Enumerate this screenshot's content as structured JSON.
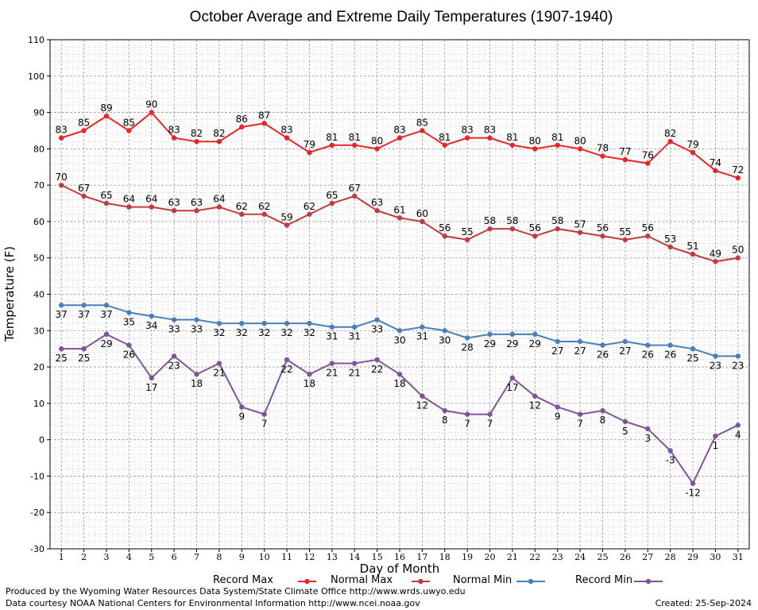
{
  "chart_data": {
    "type": "line",
    "title": "October Average and Extreme Daily Temperatures (1907-1940)",
    "xlabel": "Day of Month",
    "ylabel": "Temperature (F)",
    "xlim": [
      1,
      31
    ],
    "ylim": [
      -30,
      110
    ],
    "y_ticks": [
      -30,
      -20,
      -10,
      0,
      10,
      20,
      30,
      40,
      50,
      60,
      70,
      80,
      90,
      100,
      110
    ],
    "x": [
      1,
      2,
      3,
      4,
      5,
      6,
      7,
      8,
      9,
      10,
      11,
      12,
      13,
      14,
      15,
      16,
      17,
      18,
      19,
      20,
      21,
      22,
      23,
      24,
      25,
      26,
      27,
      28,
      29,
      30,
      31
    ],
    "grid": true,
    "legend_position": "bottom",
    "series": [
      {
        "name": "Record Max",
        "color": "#e8262a",
        "values": [
          83,
          85,
          89,
          85,
          90,
          83,
          82,
          82,
          86,
          87,
          83,
          79,
          81,
          81,
          80,
          83,
          85,
          81,
          83,
          83,
          81,
          80,
          81,
          80,
          78,
          77,
          76,
          82,
          79,
          74,
          72
        ]
      },
      {
        "name": "Normal Max",
        "color": "#c03c40",
        "values": [
          70,
          67,
          65,
          64,
          64,
          63,
          63,
          64,
          62,
          62,
          59,
          62,
          65,
          67,
          63,
          61,
          60,
          56,
          55,
          58,
          58,
          56,
          58,
          57,
          56,
          55,
          56,
          53,
          51,
          49,
          50
        ]
      },
      {
        "name": "Normal Min",
        "color": "#4a7fb9",
        "values": [
          37,
          37,
          37,
          35,
          34,
          33,
          33,
          32,
          32,
          32,
          32,
          32,
          31,
          31,
          33,
          30,
          31,
          30,
          28,
          29,
          29,
          29,
          27,
          27,
          26,
          27,
          26,
          26,
          25,
          23,
          23
        ]
      },
      {
        "name": "Record Min",
        "color": "#7f549b",
        "values": [
          25,
          25,
          29,
          26,
          17,
          23,
          18,
          21,
          9,
          7,
          22,
          18,
          21,
          21,
          22,
          18,
          12,
          8,
          7,
          7,
          17,
          12,
          9,
          7,
          8,
          5,
          3,
          -3,
          -12,
          1,
          4
        ]
      }
    ]
  },
  "footer": {
    "produced_by": "Produced by the Wyoming Water Resources Data System/State Climate Office http://www.wrds.uwyo.edu",
    "data_courtesy": "Data courtesy NOAA National Centers for Environmental Information http://www.ncei.noaa.gov",
    "created": "Created:  25-Sep-2024"
  }
}
